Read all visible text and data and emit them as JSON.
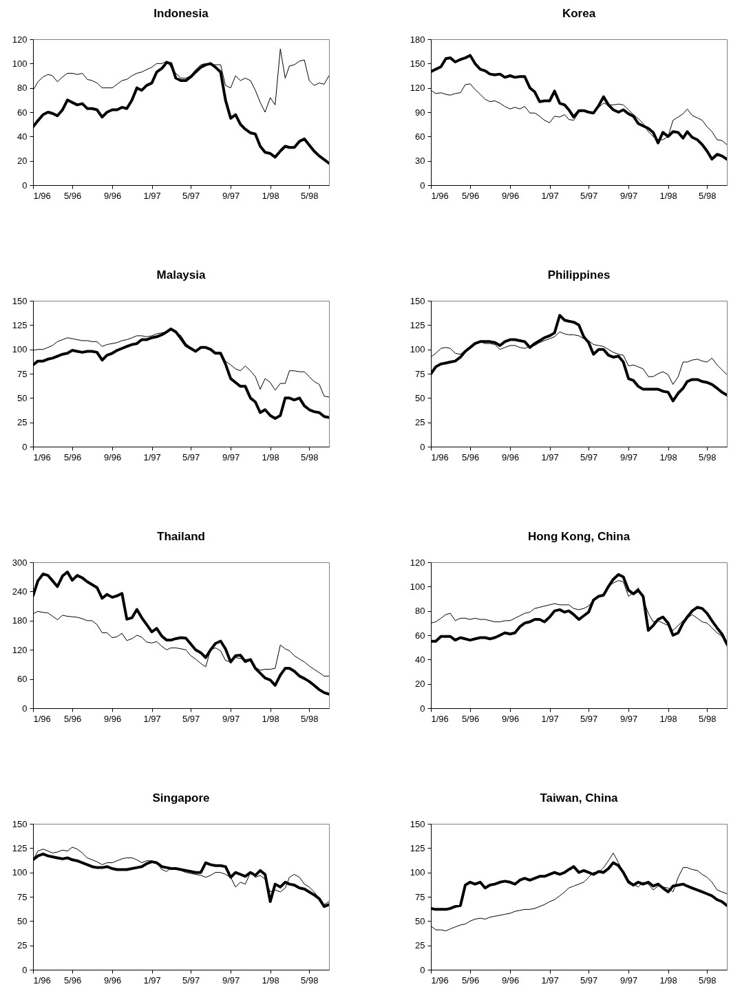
{
  "chart_data": [
    {
      "type": "line",
      "title": "Indonesia",
      "x": [
        "1996-01-01",
        "1996-01-16",
        "1996-02-01",
        "1996-02-16",
        "1996-03-01",
        "1996-03-16",
        "1996-04-01",
        "1996-04-16",
        "1996-05-01",
        "1996-05-16",
        "1996-06-01",
        "1996-06-16",
        "1996-07-01",
        "1996-07-16",
        "1996-08-01",
        "1996-08-16",
        "1996-09-01",
        "1996-09-16",
        "1996-10-01",
        "1996-10-16",
        "1996-11-01",
        "1996-11-16",
        "1996-12-01",
        "1996-12-16",
        "1997-01-01",
        "1997-01-16",
        "1997-02-01",
        "1997-02-16",
        "1997-03-01",
        "1997-03-16",
        "1997-04-01",
        "1997-04-16",
        "1997-05-01",
        "1997-05-16",
        "1997-06-01",
        "1997-06-16",
        "1997-07-01",
        "1997-07-16",
        "1997-08-01",
        "1997-08-16",
        "1997-09-01",
        "1997-09-16",
        "1997-10-01",
        "1997-10-16",
        "1997-11-01",
        "1997-11-16",
        "1997-12-01",
        "1997-12-16",
        "1998-01-01",
        "1998-01-16",
        "1998-02-01",
        "1998-02-16",
        "1998-03-01",
        "1998-03-16",
        "1998-04-01",
        "1998-04-16",
        "1998-05-01",
        "1998-05-16",
        "1998-06-01",
        "1998-06-16",
        "1998-07-01"
      ],
      "xlim": [
        "1996-01-01",
        "1998-07-01"
      ],
      "xticks": [
        {
          "value": "1996-01-01",
          "label": "1/96"
        },
        {
          "value": "1996-05-01",
          "label": "5/96"
        },
        {
          "value": "1996-09-01",
          "label": "9/96"
        },
        {
          "value": "1997-01-01",
          "label": "1/97"
        },
        {
          "value": "1997-05-01",
          "label": "5/97"
        },
        {
          "value": "1997-09-01",
          "label": "9/97"
        },
        {
          "value": "1998-01-01",
          "label": "1/98"
        },
        {
          "value": "1998-05-01",
          "label": "5/98"
        }
      ],
      "ylim": [
        0,
        120
      ],
      "yticks": [
        0,
        20,
        40,
        60,
        80,
        100,
        120
      ],
      "series": [
        {
          "color": "#000000",
          "values": [
            48,
            53,
            58,
            60,
            59,
            57,
            62,
            70,
            68,
            66,
            67,
            63,
            63,
            62,
            56,
            60,
            62,
            62,
            64,
            63,
            70,
            80,
            78,
            82,
            84,
            93,
            96,
            101,
            100,
            88,
            86,
            86,
            89,
            93,
            97,
            99,
            100,
            97,
            93,
            70,
            55,
            58,
            50,
            46,
            43,
            42,
            32,
            27,
            26,
            23,
            28,
            32,
            31,
            31,
            36,
            38,
            33,
            28,
            24,
            21,
            18
          ]
        },
        {
          "color": "#000000",
          "values": [
            78,
            85,
            89,
            91,
            90,
            85,
            89,
            92,
            92,
            91,
            92,
            87,
            86,
            84,
            80,
            80,
            80,
            83,
            86,
            87,
            90,
            92,
            93,
            95,
            97,
            100,
            100,
            102,
            97,
            92,
            88,
            88,
            90,
            95,
            99,
            100,
            99,
            99,
            99,
            82,
            80,
            90,
            86,
            88,
            86,
            78,
            68,
            60,
            72,
            66,
            112,
            88,
            98,
            99,
            102,
            103,
            86,
            82,
            84,
            83,
            90
          ]
        }
      ]
    },
    {
      "type": "line",
      "title": "Korea",
      "x": [
        "1996-01-01",
        "1996-01-16",
        "1996-02-01",
        "1996-02-16",
        "1996-03-01",
        "1996-03-16",
        "1996-04-01",
        "1996-04-16",
        "1996-05-01",
        "1996-05-16",
        "1996-06-01",
        "1996-06-16",
        "1996-07-01",
        "1996-07-16",
        "1996-08-01",
        "1996-08-16",
        "1996-09-01",
        "1996-09-16",
        "1996-10-01",
        "1996-10-16",
        "1996-11-01",
        "1996-11-16",
        "1996-12-01",
        "1996-12-16",
        "1997-01-01",
        "1997-01-16",
        "1997-02-01",
        "1997-02-16",
        "1997-03-01",
        "1997-03-16",
        "1997-04-01",
        "1997-04-16",
        "1997-05-01",
        "1997-05-16",
        "1997-06-01",
        "1997-06-16",
        "1997-07-01",
        "1997-07-16",
        "1997-08-01",
        "1997-08-16",
        "1997-09-01",
        "1997-09-16",
        "1997-10-01",
        "1997-10-16",
        "1997-11-01",
        "1997-11-16",
        "1997-12-01",
        "1997-12-16",
        "1998-01-01",
        "1998-01-16",
        "1998-02-01",
        "1998-02-16",
        "1998-03-01",
        "1998-03-16",
        "1998-04-01",
        "1998-04-16",
        "1998-05-01",
        "1998-05-16",
        "1998-06-01",
        "1998-06-16",
        "1998-07-01"
      ],
      "xlim": [
        "1996-01-01",
        "1998-07-01"
      ],
      "xticks": [
        {
          "value": "1996-01-01",
          "label": "1/96"
        },
        {
          "value": "1996-05-01",
          "label": "5/96"
        },
        {
          "value": "1996-09-01",
          "label": "9/96"
        },
        {
          "value": "1997-01-01",
          "label": "1/97"
        },
        {
          "value": "1997-05-01",
          "label": "5/97"
        },
        {
          "value": "1997-09-01",
          "label": "9/97"
        },
        {
          "value": "1998-01-01",
          "label": "1/98"
        },
        {
          "value": "1998-05-01",
          "label": "5/98"
        }
      ],
      "ylim": [
        0,
        180
      ],
      "yticks": [
        0,
        30,
        60,
        90,
        120,
        150,
        180
      ],
      "series": [
        {
          "color": "#000000",
          "values": [
            140,
            143,
            146,
            156,
            157,
            152,
            155,
            157,
            160,
            150,
            143,
            141,
            137,
            136,
            137,
            133,
            135,
            133,
            134,
            134,
            120,
            115,
            103,
            104,
            104,
            116,
            101,
            99,
            93,
            84,
            92,
            92,
            90,
            89,
            98,
            109,
            99,
            93,
            90,
            93,
            88,
            85,
            76,
            73,
            70,
            65,
            52,
            65,
            60,
            66,
            65,
            58,
            66,
            59,
            56,
            50,
            42,
            32,
            38,
            36,
            32
          ]
        },
        {
          "color": "#000000",
          "values": [
            117,
            113,
            114,
            112,
            111,
            113,
            114,
            124,
            125,
            118,
            112,
            106,
            103,
            104,
            101,
            97,
            94,
            96,
            94,
            97,
            89,
            89,
            85,
            80,
            77,
            85,
            84,
            87,
            81,
            80,
            90,
            92,
            90,
            88,
            96,
            101,
            99,
            99,
            100,
            99,
            93,
            87,
            82,
            76,
            66,
            60,
            56,
            56,
            60,
            80,
            84,
            88,
            94,
            86,
            83,
            80,
            72,
            66,
            56,
            55,
            50
          ]
        }
      ]
    },
    {
      "type": "line",
      "title": "Malaysia",
      "x": [
        "1996-01-01",
        "1996-01-16",
        "1996-02-01",
        "1996-02-16",
        "1996-03-01",
        "1996-03-16",
        "1996-04-01",
        "1996-04-16",
        "1996-05-01",
        "1996-05-16",
        "1996-06-01",
        "1996-06-16",
        "1996-07-01",
        "1996-07-16",
        "1996-08-01",
        "1996-08-16",
        "1996-09-01",
        "1996-09-16",
        "1996-10-01",
        "1996-10-16",
        "1996-11-01",
        "1996-11-16",
        "1996-12-01",
        "1996-12-16",
        "1997-01-01",
        "1997-01-16",
        "1997-02-01",
        "1997-02-16",
        "1997-03-01",
        "1997-03-16",
        "1997-04-01",
        "1997-04-16",
        "1997-05-01",
        "1997-05-16",
        "1997-06-01",
        "1997-06-16",
        "1997-07-01",
        "1997-07-16",
        "1997-08-01",
        "1997-08-16",
        "1997-09-01",
        "1997-09-16",
        "1997-10-01",
        "1997-10-16",
        "1997-11-01",
        "1997-11-16",
        "1997-12-01",
        "1997-12-16",
        "1998-01-01",
        "1998-01-16",
        "1998-02-01",
        "1998-02-16",
        "1998-03-01",
        "1998-03-16",
        "1998-04-01",
        "1998-04-16",
        "1998-05-01",
        "1998-05-16",
        "1998-06-01",
        "1998-06-16",
        "1998-07-01"
      ],
      "xlim": [
        "1996-01-01",
        "1998-07-01"
      ],
      "xticks": [
        {
          "value": "1996-01-01",
          "label": "1/96"
        },
        {
          "value": "1996-05-01",
          "label": "5/96"
        },
        {
          "value": "1996-09-01",
          "label": "9/96"
        },
        {
          "value": "1997-01-01",
          "label": "1/97"
        },
        {
          "value": "1997-05-01",
          "label": "5/97"
        },
        {
          "value": "1997-09-01",
          "label": "9/97"
        },
        {
          "value": "1998-01-01",
          "label": "1/98"
        },
        {
          "value": "1998-05-01",
          "label": "5/98"
        }
      ],
      "ylim": [
        0,
        150
      ],
      "yticks": [
        0,
        25,
        50,
        75,
        100,
        125,
        150
      ],
      "series": [
        {
          "color": "#000000",
          "values": [
            84,
            88,
            88,
            90,
            91,
            93,
            95,
            96,
            99,
            98,
            97,
            98,
            98,
            97,
            89,
            94,
            96,
            99,
            101,
            103,
            105,
            106,
            110,
            110,
            112,
            113,
            115,
            118,
            121,
            118,
            111,
            104,
            101,
            98,
            102,
            102,
            100,
            96,
            96,
            85,
            70,
            66,
            62,
            62,
            50,
            46,
            35,
            38,
            32,
            29,
            32,
            50,
            50,
            48,
            50,
            42,
            38,
            36,
            35,
            31,
            30
          ]
        },
        {
          "color": "#000000",
          "values": [
            99,
            100,
            100,
            102,
            104,
            108,
            110,
            112,
            111,
            110,
            109,
            109,
            108,
            108,
            103,
            105,
            106,
            107,
            109,
            110,
            112,
            114,
            114,
            113,
            114,
            116,
            117,
            118,
            120,
            118,
            114,
            106,
            102,
            99,
            103,
            102,
            100,
            97,
            97,
            88,
            84,
            80,
            78,
            83,
            78,
            72,
            59,
            70,
            66,
            58,
            65,
            65,
            78,
            78,
            77,
            77,
            72,
            67,
            64,
            52,
            51
          ]
        }
      ]
    },
    {
      "type": "line",
      "title": "Philippines",
      "x": [
        "1996-01-01",
        "1996-01-16",
        "1996-02-01",
        "1996-02-16",
        "1996-03-01",
        "1996-03-16",
        "1996-04-01",
        "1996-04-16",
        "1996-05-01",
        "1996-05-16",
        "1996-06-01",
        "1996-06-16",
        "1996-07-01",
        "1996-07-16",
        "1996-08-01",
        "1996-08-16",
        "1996-09-01",
        "1996-09-16",
        "1996-10-01",
        "1996-10-16",
        "1996-11-01",
        "1996-11-16",
        "1996-12-01",
        "1996-12-16",
        "1997-01-01",
        "1997-01-16",
        "1997-02-01",
        "1997-02-16",
        "1997-03-01",
        "1997-03-16",
        "1997-04-01",
        "1997-04-16",
        "1997-05-01",
        "1997-05-16",
        "1997-06-01",
        "1997-06-16",
        "1997-07-01",
        "1997-07-16",
        "1997-08-01",
        "1997-08-16",
        "1997-09-01",
        "1997-09-16",
        "1997-10-01",
        "1997-10-16",
        "1997-11-01",
        "1997-11-16",
        "1997-12-01",
        "1997-12-16",
        "1998-01-01",
        "1998-01-16",
        "1998-02-01",
        "1998-02-16",
        "1998-03-01",
        "1998-03-16",
        "1998-04-01",
        "1998-04-16",
        "1998-05-01",
        "1998-05-16",
        "1998-06-01",
        "1998-06-16",
        "1998-07-01"
      ],
      "xlim": [
        "1996-01-01",
        "1998-07-01"
      ],
      "xticks": [
        {
          "value": "1996-01-01",
          "label": "1/96"
        },
        {
          "value": "1996-05-01",
          "label": "5/96"
        },
        {
          "value": "1996-09-01",
          "label": "9/96"
        },
        {
          "value": "1997-01-01",
          "label": "1/97"
        },
        {
          "value": "1997-05-01",
          "label": "5/97"
        },
        {
          "value": "1997-09-01",
          "label": "9/97"
        },
        {
          "value": "1998-01-01",
          "label": "1/98"
        },
        {
          "value": "1998-05-01",
          "label": "5/98"
        }
      ],
      "ylim": [
        0,
        150
      ],
      "yticks": [
        0,
        25,
        50,
        75,
        100,
        125,
        150
      ],
      "series": [
        {
          "color": "#000000",
          "values": [
            75,
            82,
            85,
            86,
            87,
            88,
            92,
            98,
            102,
            106,
            108,
            108,
            108,
            107,
            104,
            108,
            110,
            110,
            109,
            108,
            102,
            106,
            109,
            112,
            114,
            117,
            135,
            130,
            129,
            128,
            125,
            113,
            107,
            95,
            100,
            100,
            94,
            92,
            93,
            87,
            70,
            68,
            62,
            59,
            59,
            59,
            59,
            57,
            56,
            47,
            55,
            60,
            67,
            69,
            69,
            67,
            66,
            64,
            60,
            56,
            53
          ]
        },
        {
          "color": "#000000",
          "values": [
            92,
            96,
            101,
            102,
            101,
            96,
            95,
            99,
            103,
            107,
            108,
            106,
            106,
            105,
            100,
            102,
            104,
            104,
            102,
            101,
            103,
            104,
            107,
            109,
            111,
            113,
            118,
            116,
            115,
            115,
            114,
            111,
            109,
            105,
            104,
            103,
            100,
            97,
            95,
            94,
            83,
            84,
            82,
            80,
            72,
            72,
            75,
            77,
            74,
            64,
            72,
            87,
            87,
            89,
            90,
            88,
            87,
            91,
            84,
            79,
            74
          ]
        }
      ]
    },
    {
      "type": "line",
      "title": "Thailand",
      "x": [
        "1996-01-01",
        "1996-01-16",
        "1996-02-01",
        "1996-02-16",
        "1996-03-01",
        "1996-03-16",
        "1996-04-01",
        "1996-04-16",
        "1996-05-01",
        "1996-05-16",
        "1996-06-01",
        "1996-06-16",
        "1996-07-01",
        "1996-07-16",
        "1996-08-01",
        "1996-08-16",
        "1996-09-01",
        "1996-09-16",
        "1996-10-01",
        "1996-10-16",
        "1996-11-01",
        "1996-11-16",
        "1996-12-01",
        "1996-12-16",
        "1997-01-01",
        "1997-01-16",
        "1997-02-01",
        "1997-02-16",
        "1997-03-01",
        "1997-03-16",
        "1997-04-01",
        "1997-04-16",
        "1997-05-01",
        "1997-05-16",
        "1997-06-01",
        "1997-06-16",
        "1997-07-01",
        "1997-07-16",
        "1997-08-01",
        "1997-08-16",
        "1997-09-01",
        "1997-09-16",
        "1997-10-01",
        "1997-10-16",
        "1997-11-01",
        "1997-11-16",
        "1997-12-01",
        "1997-12-16",
        "1998-01-01",
        "1998-01-16",
        "1998-02-01",
        "1998-02-16",
        "1998-03-01",
        "1998-03-16",
        "1998-04-01",
        "1998-04-16",
        "1998-05-01",
        "1998-05-16",
        "1998-06-01",
        "1998-06-16",
        "1998-07-01"
      ],
      "xlim": [
        "1996-01-01",
        "1998-07-01"
      ],
      "xticks": [
        {
          "value": "1996-01-01",
          "label": "1/96"
        },
        {
          "value": "1996-05-01",
          "label": "5/96"
        },
        {
          "value": "1996-09-01",
          "label": "9/96"
        },
        {
          "value": "1997-01-01",
          "label": "1/97"
        },
        {
          "value": "1997-05-01",
          "label": "5/97"
        },
        {
          "value": "1997-09-01",
          "label": "9/97"
        },
        {
          "value": "1998-01-01",
          "label": "1/98"
        },
        {
          "value": "1998-05-01",
          "label": "5/98"
        }
      ],
      "ylim": [
        0,
        300
      ],
      "yticks": [
        0,
        60,
        120,
        180,
        240,
        300
      ],
      "series": [
        {
          "color": "#000000",
          "values": [
            231,
            262,
            276,
            273,
            262,
            250,
            272,
            280,
            263,
            273,
            268,
            260,
            254,
            248,
            226,
            234,
            228,
            231,
            236,
            183,
            186,
            203,
            186,
            172,
            157,
            164,
            148,
            140,
            140,
            143,
            145,
            144,
            132,
            120,
            114,
            104,
            120,
            133,
            138,
            122,
            95,
            108,
            109,
            96,
            100,
            82,
            72,
            62,
            58,
            47,
            68,
            82,
            82,
            76,
            66,
            61,
            55,
            47,
            38,
            32,
            29
          ]
        },
        {
          "color": "#000000",
          "values": [
            194,
            199,
            197,
            196,
            189,
            182,
            191,
            189,
            188,
            187,
            184,
            180,
            180,
            172,
            155,
            155,
            145,
            147,
            154,
            139,
            143,
            150,
            146,
            136,
            134,
            137,
            127,
            120,
            124,
            124,
            122,
            120,
            108,
            101,
            92,
            85,
            120,
            124,
            118,
            98,
            95,
            104,
            102,
            100,
            101,
            84,
            78,
            80,
            80,
            82,
            130,
            122,
            118,
            108,
            101,
            95,
            87,
            80,
            73,
            66,
            66
          ]
        }
      ]
    },
    {
      "type": "line",
      "title": "Hong Kong, China",
      "x": [
        "1996-01-01",
        "1996-01-16",
        "1996-02-01",
        "1996-02-16",
        "1996-03-01",
        "1996-03-16",
        "1996-04-01",
        "1996-04-16",
        "1996-05-01",
        "1996-05-16",
        "1996-06-01",
        "1996-06-16",
        "1996-07-01",
        "1996-07-16",
        "1996-08-01",
        "1996-08-16",
        "1996-09-01",
        "1996-09-16",
        "1996-10-01",
        "1996-10-16",
        "1996-11-01",
        "1996-11-16",
        "1996-12-01",
        "1996-12-16",
        "1997-01-01",
        "1997-01-16",
        "1997-02-01",
        "1997-02-16",
        "1997-03-01",
        "1997-03-16",
        "1997-04-01",
        "1997-04-16",
        "1997-05-01",
        "1997-05-16",
        "1997-06-01",
        "1997-06-16",
        "1997-07-01",
        "1997-07-16",
        "1997-08-01",
        "1997-08-16",
        "1997-09-01",
        "1997-09-16",
        "1997-10-01",
        "1997-10-16",
        "1997-11-01",
        "1997-11-16",
        "1997-12-01",
        "1997-12-16",
        "1998-01-01",
        "1998-01-16",
        "1998-02-01",
        "1998-02-16",
        "1998-03-01",
        "1998-03-16",
        "1998-04-01",
        "1998-04-16",
        "1998-05-01",
        "1998-05-16",
        "1998-06-01",
        "1998-06-16",
        "1998-07-01"
      ],
      "xlim": [
        "1996-01-01",
        "1998-07-01"
      ],
      "xticks": [
        {
          "value": "1996-01-01",
          "label": "1/96"
        },
        {
          "value": "1996-05-01",
          "label": "5/96"
        },
        {
          "value": "1996-09-01",
          "label": "9/96"
        },
        {
          "value": "1997-01-01",
          "label": "1/97"
        },
        {
          "value": "1997-05-01",
          "label": "5/97"
        },
        {
          "value": "1997-09-01",
          "label": "9/97"
        },
        {
          "value": "1998-01-01",
          "label": "1/98"
        },
        {
          "value": "1998-05-01",
          "label": "5/98"
        }
      ],
      "ylim": [
        0,
        120
      ],
      "yticks": [
        0,
        20,
        40,
        60,
        80,
        100,
        120
      ],
      "series": [
        {
          "color": "#000000",
          "values": [
            55,
            55,
            59,
            59,
            59,
            56,
            58,
            57,
            56,
            57,
            58,
            58,
            57,
            58,
            60,
            62,
            61,
            62,
            67,
            70,
            71,
            73,
            73,
            71,
            75,
            80,
            81,
            79,
            80,
            77,
            73,
            76,
            79,
            89,
            92,
            93,
            100,
            106,
            110,
            108,
            97,
            94,
            97,
            92,
            64,
            68,
            73,
            75,
            70,
            60,
            62,
            70,
            75,
            80,
            83,
            82,
            78,
            72,
            66,
            61,
            53
          ]
        },
        {
          "color": "#000000",
          "values": [
            70,
            71,
            74,
            77,
            78,
            72,
            74,
            74,
            73,
            74,
            73,
            73,
            72,
            71,
            71,
            72,
            72,
            74,
            76,
            78,
            79,
            82,
            83,
            84,
            85,
            86,
            85,
            85,
            85,
            82,
            81,
            82,
            84,
            89,
            92,
            94,
            100,
            103,
            105,
            104,
            92,
            95,
            99,
            90,
            78,
            71,
            72,
            70,
            68,
            64,
            68,
            72,
            74,
            77,
            74,
            71,
            70,
            66,
            62,
            59,
            51
          ]
        }
      ]
    },
    {
      "type": "line",
      "title": "Singapore",
      "x": [
        "1996-01-01",
        "1996-01-16",
        "1996-02-01",
        "1996-02-16",
        "1996-03-01",
        "1996-03-16",
        "1996-04-01",
        "1996-04-16",
        "1996-05-01",
        "1996-05-16",
        "1996-06-01",
        "1996-06-16",
        "1996-07-01",
        "1996-07-16",
        "1996-08-01",
        "1996-08-16",
        "1996-09-01",
        "1996-09-16",
        "1996-10-01",
        "1996-10-16",
        "1996-11-01",
        "1996-11-16",
        "1996-12-01",
        "1996-12-16",
        "1997-01-01",
        "1997-01-16",
        "1997-02-01",
        "1997-02-16",
        "1997-03-01",
        "1997-03-16",
        "1997-04-01",
        "1997-04-16",
        "1997-05-01",
        "1997-05-16",
        "1997-06-01",
        "1997-06-16",
        "1997-07-01",
        "1997-07-16",
        "1997-08-01",
        "1997-08-16",
        "1997-09-01",
        "1997-09-16",
        "1997-10-01",
        "1997-10-16",
        "1997-11-01",
        "1997-11-16",
        "1997-12-01",
        "1997-12-16",
        "1998-01-01",
        "1998-01-16",
        "1998-02-01",
        "1998-02-16",
        "1998-03-01",
        "1998-03-16",
        "1998-04-01",
        "1998-04-16",
        "1998-05-01",
        "1998-05-16",
        "1998-06-01",
        "1998-06-16",
        "1998-07-01"
      ],
      "xlim": [
        "1996-01-01",
        "1998-07-01"
      ],
      "xticks": [
        {
          "value": "1996-01-01",
          "label": "1/96"
        },
        {
          "value": "1996-05-01",
          "label": "5/96"
        },
        {
          "value": "1996-09-01",
          "label": "9/96"
        },
        {
          "value": "1997-01-01",
          "label": "1/97"
        },
        {
          "value": "1997-05-01",
          "label": "5/97"
        },
        {
          "value": "1997-09-01",
          "label": "9/97"
        },
        {
          "value": "1998-01-01",
          "label": "1/98"
        },
        {
          "value": "1998-05-01",
          "label": "5/98"
        }
      ],
      "ylim": [
        0,
        150
      ],
      "yticks": [
        0,
        25,
        50,
        75,
        100,
        125,
        150
      ],
      "series": [
        {
          "color": "#000000",
          "values": [
            113,
            117,
            119,
            117,
            116,
            115,
            114,
            115,
            113,
            112,
            110,
            108,
            106,
            105,
            105,
            106,
            104,
            103,
            103,
            103,
            104,
            105,
            106,
            109,
            111,
            110,
            106,
            105,
            104,
            104,
            103,
            102,
            101,
            100,
            100,
            110,
            108,
            107,
            107,
            106,
            95,
            100,
            98,
            96,
            100,
            97,
            102,
            98,
            70,
            88,
            85,
            90,
            88,
            87,
            84,
            83,
            80,
            77,
            73,
            65,
            67
          ]
        },
        {
          "color": "#000000",
          "values": [
            113,
            122,
            124,
            122,
            120,
            121,
            123,
            122,
            126,
            124,
            120,
            115,
            113,
            111,
            108,
            110,
            110,
            112,
            114,
            115,
            115,
            113,
            110,
            112,
            112,
            110,
            103,
            101,
            105,
            104,
            102,
            100,
            99,
            98,
            97,
            95,
            97,
            100,
            100,
            98,
            95,
            85,
            90,
            88,
            100,
            95,
            97,
            93,
            80,
            82,
            80,
            84,
            95,
            98,
            95,
            88,
            85,
            80,
            73,
            67,
            70
          ]
        }
      ]
    },
    {
      "type": "line",
      "title": "Taiwan, China",
      "x": [
        "1996-01-01",
        "1996-01-16",
        "1996-02-01",
        "1996-02-16",
        "1996-03-01",
        "1996-03-16",
        "1996-04-01",
        "1996-04-16",
        "1996-05-01",
        "1996-05-16",
        "1996-06-01",
        "1996-06-16",
        "1996-07-01",
        "1996-07-16",
        "1996-08-01",
        "1996-08-16",
        "1996-09-01",
        "1996-09-16",
        "1996-10-01",
        "1996-10-16",
        "1996-11-01",
        "1996-11-16",
        "1996-12-01",
        "1996-12-16",
        "1997-01-01",
        "1997-01-16",
        "1997-02-01",
        "1997-02-16",
        "1997-03-01",
        "1997-03-16",
        "1997-04-01",
        "1997-04-16",
        "1997-05-01",
        "1997-05-16",
        "1997-06-01",
        "1997-06-16",
        "1997-07-01",
        "1997-07-16",
        "1997-08-01",
        "1997-08-16",
        "1997-09-01",
        "1997-09-16",
        "1997-10-01",
        "1997-10-16",
        "1997-11-01",
        "1997-11-16",
        "1997-12-01",
        "1997-12-16",
        "1998-01-01",
        "1998-01-16",
        "1998-02-01",
        "1998-02-16",
        "1998-03-01",
        "1998-03-16",
        "1998-04-01",
        "1998-04-16",
        "1998-05-01",
        "1998-05-16",
        "1998-06-01",
        "1998-06-16",
        "1998-07-01"
      ],
      "xlim": [
        "1996-01-01",
        "1998-07-01"
      ],
      "xticks": [
        {
          "value": "1996-01-01",
          "label": "1/96"
        },
        {
          "value": "1996-05-01",
          "label": "5/96"
        },
        {
          "value": "1996-09-01",
          "label": "9/96"
        },
        {
          "value": "1997-01-01",
          "label": "1/97"
        },
        {
          "value": "1997-05-01",
          "label": "5/97"
        },
        {
          "value": "1997-09-01",
          "label": "9/97"
        },
        {
          "value": "1998-01-01",
          "label": "1/98"
        },
        {
          "value": "1998-05-01",
          "label": "5/98"
        }
      ],
      "ylim": [
        0,
        150
      ],
      "yticks": [
        0,
        25,
        50,
        75,
        100,
        125,
        150
      ],
      "series": [
        {
          "color": "#000000",
          "values": [
            63,
            62,
            62,
            62,
            63,
            65,
            66,
            87,
            90,
            88,
            90,
            84,
            87,
            88,
            90,
            91,
            90,
            88,
            92,
            94,
            92,
            94,
            96,
            96,
            98,
            100,
            98,
            100,
            103,
            106,
            100,
            102,
            100,
            98,
            101,
            100,
            104,
            110,
            107,
            100,
            90,
            87,
            90,
            88,
            90,
            86,
            88,
            84,
            80,
            86,
            87,
            88,
            86,
            84,
            82,
            80,
            78,
            76,
            72,
            70,
            66
          ]
        },
        {
          "color": "#000000",
          "values": [
            45,
            41,
            41,
            40,
            42,
            44,
            46,
            47,
            50,
            52,
            53,
            52,
            54,
            55,
            56,
            57,
            58,
            60,
            61,
            62,
            62,
            63,
            65,
            67,
            70,
            72,
            76,
            80,
            84,
            86,
            88,
            90,
            95,
            100,
            100,
            105,
            112,
            120,
            110,
            100,
            92,
            88,
            85,
            90,
            88,
            82,
            86,
            85,
            84,
            80,
            95,
            105,
            105,
            103,
            102,
            98,
            95,
            90,
            82,
            80,
            78
          ]
        }
      ]
    }
  ]
}
